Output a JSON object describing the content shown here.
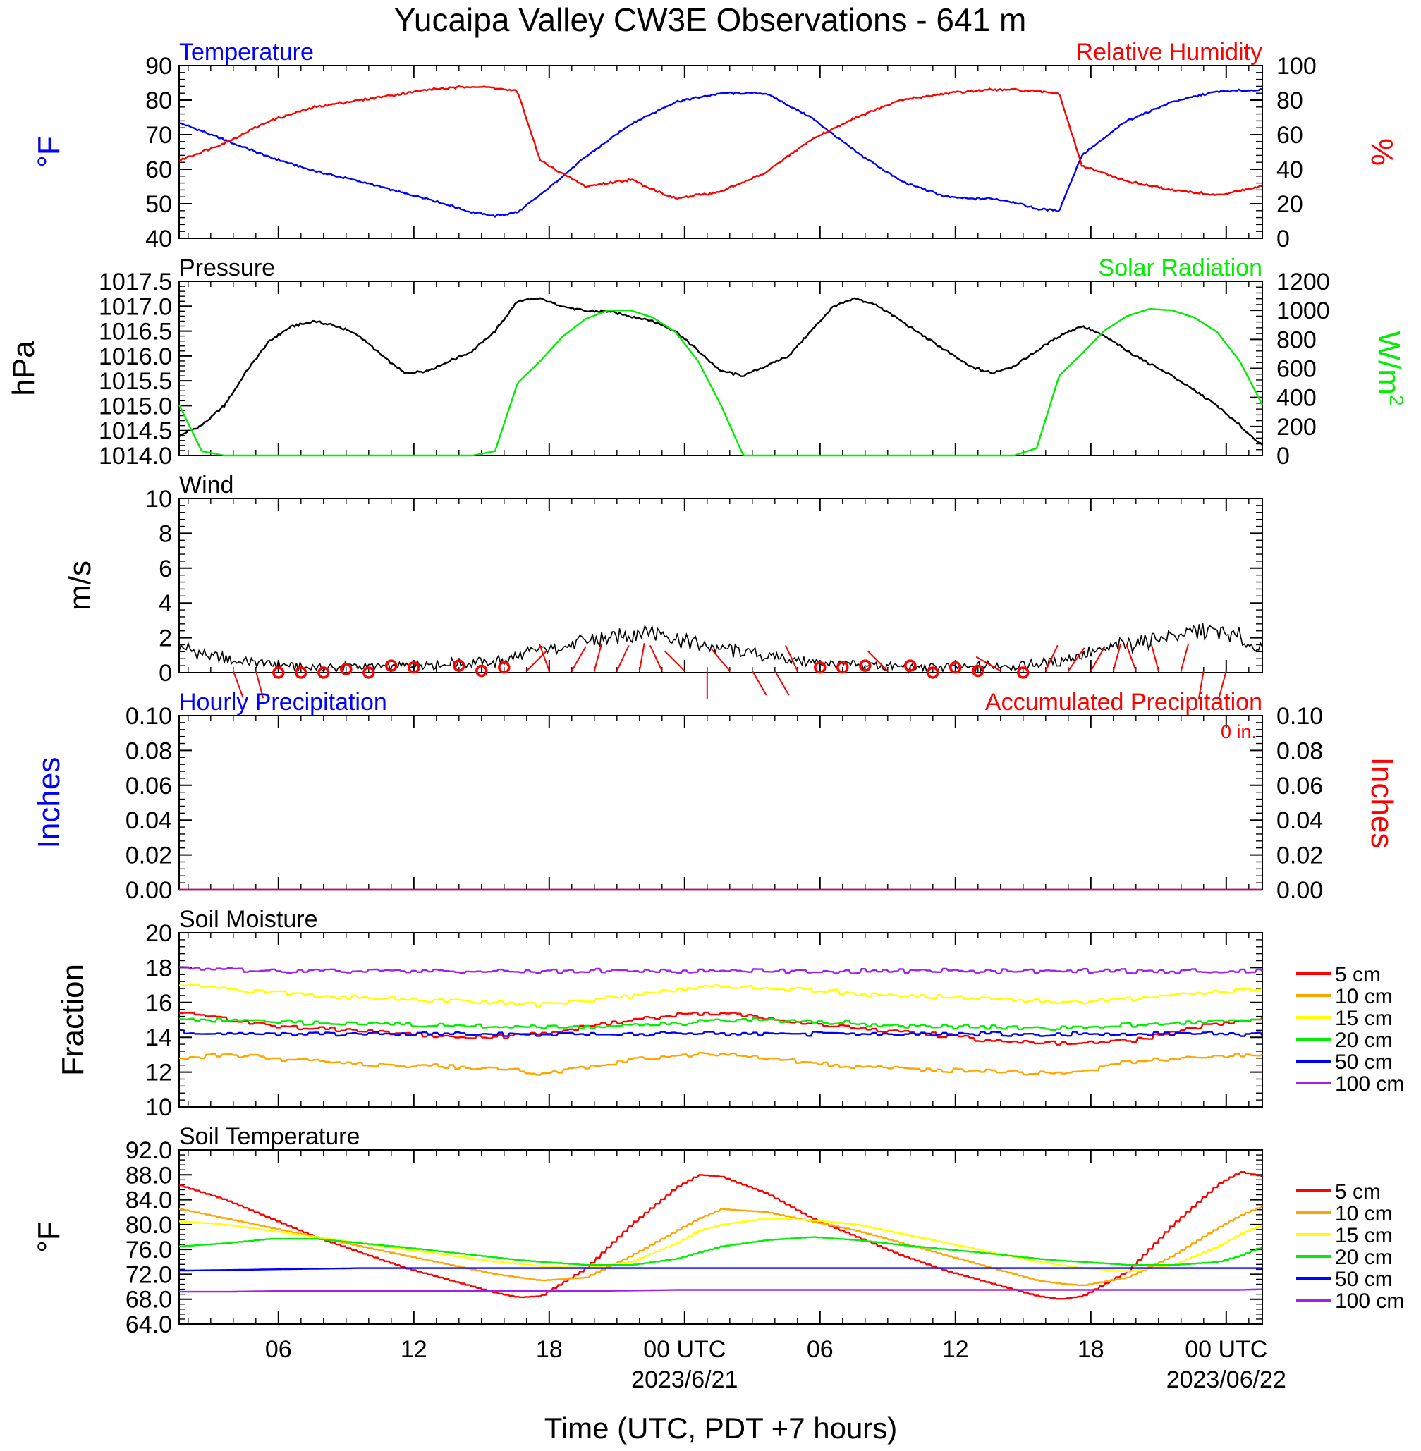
{
  "title": "Yucaipa Valley CW3E Observations - 641 m",
  "xlabel": "Time (UTC, PDT +7 hours)",
  "x_ticks": [
    "06",
    "12",
    "18",
    "00 UTC",
    "06",
    "12",
    "18",
    "00 UTC"
  ],
  "x_dates": [
    "2023/6/21",
    "2023/06/22"
  ],
  "colors": {
    "temperature": "#0000ff",
    "humidity": "#ff0000",
    "pressure": "#000000",
    "solar": "#00ee00",
    "wind": "#000000",
    "wind_barb": "#ff0000",
    "precip_hourly": "#0000ff",
    "precip_accum": "#ff0000",
    "depth_5": "#ff0000",
    "depth_10": "#ffa500",
    "depth_15": "#ffff00",
    "depth_20": "#00ee00",
    "depth_50": "#0000ff",
    "depth_100": "#a020f0"
  },
  "chart_data": [
    {
      "type": "line",
      "panel": "temp-rh",
      "label_left": "Temperature",
      "label_right": "Relative Humidity",
      "ylabel_left": "°F",
      "ylabel_right": "%",
      "ylim_left": [
        40,
        90
      ],
      "ylim_right": [
        0,
        100
      ],
      "yticks_left": [
        "40",
        "50",
        "60",
        "70",
        "80",
        "90"
      ],
      "yticks_right": [
        "0",
        "20",
        "40",
        "60",
        "80",
        "100"
      ],
      "x_hours": [
        0,
        2,
        4,
        6,
        8,
        10,
        11,
        12,
        13,
        14,
        15,
        16,
        18,
        20,
        22,
        24,
        26,
        28,
        30,
        32,
        34,
        35,
        36,
        37,
        38,
        39,
        40,
        42,
        44,
        46,
        48
      ],
      "series": [
        {
          "axis": "left",
          "color": "temperature",
          "values": [
            73.5,
            68.5,
            63.5,
            59.5,
            56.5,
            53,
            51.5,
            49.5,
            47.5,
            46.5,
            47.5,
            52.5,
            63.5,
            73,
            79.5,
            82,
            82,
            75,
            65,
            56.5,
            52,
            51.5,
            51.5,
            50.5,
            48.5,
            48,
            64,
            74,
            79.5,
            82.5,
            83
          ]
        },
        {
          "axis": "right",
          "color": "humidity",
          "values": [
            45,
            55,
            68,
            76,
            80,
            84,
            86,
            87,
            88,
            87,
            85,
            45,
            30,
            34,
            23,
            27,
            38,
            57,
            70,
            80,
            84,
            85,
            86,
            86,
            85,
            84,
            42,
            33,
            28,
            25,
            30
          ]
        }
      ]
    },
    {
      "type": "line",
      "panel": "pressure-solar",
      "label_left": "Pressure",
      "label_right": "Solar Radiation",
      "ylabel_left": "hPa",
      "ylabel_right_base": "W/m",
      "ylabel_right_sup": "2",
      "ylim_left": [
        1014.0,
        1017.5
      ],
      "ylim_right": [
        0,
        1200
      ],
      "yticks_left": [
        "1014.0",
        "1014.5",
        "1015.0",
        "1015.5",
        "1016.0",
        "1016.5",
        "1017.0",
        "1017.5"
      ],
      "yticks_right": [
        "0",
        "200",
        "400",
        "600",
        "800",
        "1000",
        "1200"
      ],
      "x_hours": [
        0,
        1,
        2,
        3,
        4,
        5,
        6,
        7,
        8,
        9,
        10,
        11,
        12,
        13,
        14,
        15,
        16,
        17,
        18,
        19,
        20,
        21,
        22,
        23,
        24,
        25,
        26,
        27,
        28,
        29,
        30,
        31,
        32,
        33,
        34,
        35,
        36,
        37,
        38,
        39,
        40,
        41,
        42,
        43,
        44,
        45,
        46,
        47,
        48
      ],
      "series": [
        {
          "axis": "left",
          "color": "pressure",
          "values": [
            1014.4,
            1014.6,
            1015.0,
            1015.7,
            1016.3,
            1016.6,
            1016.7,
            1016.6,
            1016.4,
            1016.0,
            1015.65,
            1015.7,
            1015.9,
            1016.1,
            1016.5,
            1017.1,
            1017.15,
            1017.0,
            1016.9,
            1016.9,
            1016.8,
            1016.7,
            1016.5,
            1016.1,
            1015.7,
            1015.6,
            1015.8,
            1016.0,
            1016.5,
            1017.0,
            1017.15,
            1017.0,
            1016.7,
            1016.4,
            1016.1,
            1015.8,
            1015.65,
            1015.8,
            1016.1,
            1016.4,
            1016.6,
            1016.4,
            1016.1,
            1015.85,
            1015.6,
            1015.3,
            1015.0,
            1014.6,
            1014.2
          ]
        },
        {
          "axis": "right",
          "color": "solar",
          "values": [
            350,
            30,
            0,
            0,
            0,
            0,
            0,
            0,
            0,
            0,
            0,
            0,
            0,
            0,
            30,
            500,
            650,
            820,
            940,
            1000,
            1000,
            950,
            850,
            650,
            350,
            0,
            0,
            0,
            0,
            0,
            0,
            0,
            0,
            0,
            0,
            0,
            0,
            0,
            50,
            550,
            700,
            860,
            960,
            1010,
            1000,
            950,
            850,
            650,
            350
          ]
        }
      ]
    },
    {
      "type": "line",
      "panel": "wind",
      "label_left": "Wind",
      "ylabel_left": "m/s",
      "ylim_left": [
        0,
        10
      ],
      "yticks_left": [
        "0",
        "2",
        "4",
        "6",
        "8",
        "10"
      ],
      "x_hours": [
        0,
        1,
        2,
        3,
        4,
        5,
        6,
        7,
        8,
        9,
        10,
        11,
        12,
        13,
        14,
        15,
        16,
        17,
        18,
        19,
        20,
        21,
        22,
        23,
        24,
        25,
        26,
        27,
        28,
        29,
        30,
        31,
        32,
        33,
        34,
        35,
        36,
        37,
        38,
        39,
        40,
        41,
        42,
        43,
        44,
        45,
        46,
        47,
        48
      ],
      "series": [
        {
          "axis": "left",
          "color": "wind",
          "values": [
            1.6,
            1.0,
            0.8,
            0.6,
            0.5,
            0.4,
            0.3,
            0.3,
            0.4,
            0.3,
            0.4,
            0.5,
            0.5,
            0.6,
            0.6,
            0.9,
            1.3,
            1.5,
            1.8,
            2.0,
            2.2,
            2.4,
            2.0,
            1.6,
            1.4,
            1.2,
            1.0,
            0.8,
            0.6,
            0.5,
            0.4,
            0.4,
            0.3,
            0.3,
            0.3,
            0.3,
            0.4,
            0.4,
            0.5,
            0.6,
            1.0,
            1.3,
            1.6,
            1.9,
            2.1,
            2.3,
            2.4,
            2.0,
            1.3
          ]
        }
      ],
      "barbs": {
        "calm_hours": [
          4,
          5,
          6,
          7,
          8,
          9,
          10,
          12,
          13,
          14,
          28,
          29,
          30,
          32,
          33,
          34,
          35,
          37
        ],
        "calm_speeds": [
          0.0,
          0.0,
          0.0,
          0.2,
          0.0,
          0.4,
          0.3,
          0.4,
          0.1,
          0.3,
          0.3,
          0.3,
          0.4,
          0.4,
          0.0,
          0.3,
          0.1,
          0.0
        ],
        "stick_hours": [
          2,
          3,
          15,
          16,
          17,
          18,
          19,
          20,
          21,
          22,
          23,
          24,
          25,
          26,
          27,
          31,
          36,
          38,
          39,
          40,
          41,
          42,
          43,
          44,
          45,
          46
        ],
        "stick_dir_deg": [
          160,
          165,
          45,
          340,
          30,
          15,
          25,
          10,
          335,
          315,
          180,
          320,
          150,
          150,
          335,
          315,
          300,
          25,
          35,
          30,
          15,
          340,
          345,
          15,
          190,
          195
        ]
      }
    },
    {
      "type": "line",
      "panel": "precip",
      "label_left": "Hourly Precipitation",
      "label_right": "Accumulated Precipitation",
      "annotation": "0 in.",
      "ylabel_left": "Inches",
      "ylabel_right": "Inches",
      "ylim_left": [
        0,
        0.1
      ],
      "ylim_right": [
        0,
        0.1
      ],
      "yticks_left": [
        "0.00",
        "0.02",
        "0.04",
        "0.06",
        "0.08",
        "0.10"
      ],
      "yticks_right": [
        "0.00",
        "0.02",
        "0.04",
        "0.06",
        "0.08",
        "0.10"
      ],
      "x_hours": [
        0,
        48
      ],
      "series": [
        {
          "axis": "left",
          "color": "precip_hourly",
          "values": [
            0,
            0
          ]
        },
        {
          "axis": "right",
          "color": "precip_accum",
          "values": [
            0,
            0
          ]
        }
      ]
    },
    {
      "type": "line",
      "panel": "soil-moisture",
      "label_left": "Soil Moisture",
      "ylabel_left": "Fraction",
      "ylim_left": [
        10,
        20
      ],
      "yticks_left": [
        "10",
        "12",
        "14",
        "16",
        "18",
        "20"
      ],
      "legend": [
        "5 cm",
        "10 cm",
        "15 cm",
        "20 cm",
        "50 cm",
        "100 cm"
      ],
      "legend_colors": [
        "depth_5",
        "depth_10",
        "depth_15",
        "depth_20",
        "depth_50",
        "depth_100"
      ],
      "x_hours": [
        0,
        2,
        4,
        6,
        8,
        10,
        12,
        14,
        16,
        18,
        20,
        22,
        24,
        26,
        28,
        30,
        32,
        34,
        36,
        38,
        40,
        42,
        44,
        46,
        48
      ],
      "series": [
        {
          "name": "5 cm",
          "color": "depth_5",
          "values": [
            15.5,
            15.0,
            14.7,
            14.5,
            14.4,
            14.2,
            14.1,
            14.0,
            14.2,
            14.6,
            15.0,
            15.3,
            15.4,
            15.1,
            14.8,
            14.5,
            14.3,
            14.1,
            13.8,
            13.7,
            13.6,
            13.8,
            14.3,
            14.8,
            15.1
          ]
        },
        {
          "name": "10 cm",
          "color": "depth_10",
          "values": [
            12.8,
            13.0,
            12.8,
            12.6,
            12.5,
            12.4,
            12.3,
            12.2,
            11.9,
            12.3,
            12.7,
            13.0,
            13.0,
            12.8,
            12.5,
            12.3,
            12.2,
            12.1,
            12.1,
            11.9,
            12.0,
            12.6,
            12.8,
            12.9,
            13.0
          ]
        },
        {
          "name": "15 cm",
          "color": "depth_15",
          "values": [
            17.0,
            16.8,
            16.6,
            16.4,
            16.3,
            16.2,
            16.1,
            16.0,
            15.9,
            16.1,
            16.4,
            16.7,
            16.9,
            16.8,
            16.7,
            16.5,
            16.4,
            16.3,
            16.2,
            16.1,
            16.0,
            16.2,
            16.4,
            16.6,
            16.8
          ]
        },
        {
          "name": "20 cm",
          "color": "depth_20",
          "values": [
            15.0,
            15.0,
            14.9,
            14.8,
            14.8,
            14.7,
            14.7,
            14.6,
            14.6,
            14.6,
            14.7,
            14.8,
            15.0,
            15.0,
            14.9,
            14.8,
            14.7,
            14.6,
            14.6,
            14.5,
            14.6,
            14.7,
            14.8,
            14.9,
            15.0
          ]
        },
        {
          "name": "50 cm",
          "color": "depth_50",
          "values": [
            14.3,
            14.2,
            14.2,
            14.2,
            14.2,
            14.2,
            14.2,
            14.2,
            14.2,
            14.2,
            14.2,
            14.2,
            14.2,
            14.2,
            14.2,
            14.2,
            14.2,
            14.2,
            14.2,
            14.2,
            14.2,
            14.2,
            14.2,
            14.2,
            14.2
          ]
        },
        {
          "name": "100 cm",
          "color": "depth_100",
          "values": [
            18.0,
            17.9,
            17.8,
            17.8,
            17.8,
            17.8,
            17.8,
            17.8,
            17.8,
            17.8,
            17.8,
            17.8,
            17.8,
            17.8,
            17.8,
            17.8,
            17.8,
            17.8,
            17.8,
            17.8,
            17.8,
            17.8,
            17.8,
            17.8,
            17.8
          ]
        }
      ]
    },
    {
      "type": "line",
      "panel": "soil-temperature",
      "label_left": "Soil Temperature",
      "ylabel_left": "°F",
      "ylim_left": [
        64,
        92
      ],
      "yticks_left": [
        "64.0",
        "68.0",
        "72.0",
        "76.0",
        "80.0",
        "84.0",
        "88.0",
        "92.0"
      ],
      "legend": [
        "5 cm",
        "10 cm",
        "15 cm",
        "20 cm",
        "50 cm",
        "100 cm"
      ],
      "legend_colors": [
        "depth_5",
        "depth_10",
        "depth_15",
        "depth_20",
        "depth_50",
        "depth_100"
      ],
      "x_hours": [
        0,
        2,
        4,
        6,
        8,
        10,
        12,
        14,
        15,
        16,
        18,
        20,
        22,
        23,
        24,
        26,
        28,
        30,
        32,
        34,
        36,
        38,
        39,
        40,
        42,
        44,
        46,
        47,
        48
      ],
      "series": [
        {
          "name": "5 cm",
          "color": "depth_5",
          "values": [
            86.3,
            84,
            81,
            78,
            75.5,
            73,
            71,
            69,
            68.3,
            68.5,
            73,
            80,
            86,
            88,
            87.7,
            85,
            81,
            78,
            75,
            72.5,
            70.5,
            68.5,
            68,
            68.5,
            72.5,
            80,
            86.5,
            88.5,
            87.7
          ]
        },
        {
          "name": "10 cm",
          "color": "depth_10",
          "values": [
            82.5,
            81,
            79.5,
            78,
            76.5,
            75,
            73.5,
            72,
            71.5,
            71,
            71.5,
            75,
            79,
            81,
            82.5,
            82,
            80.5,
            79,
            77,
            75,
            73,
            71,
            70.5,
            70.2,
            71.5,
            75,
            79.5,
            81.5,
            83
          ]
        },
        {
          "name": "15 cm",
          "color": "depth_15",
          "values": [
            80.5,
            80,
            79,
            78,
            77,
            76,
            75,
            74,
            73.7,
            73.3,
            73,
            74,
            77,
            79,
            80,
            81,
            80.7,
            80,
            78.5,
            77,
            75.5,
            74,
            73.5,
            73,
            72.5,
            73.5,
            76.5,
            78.5,
            80
          ]
        },
        {
          "name": "20 cm",
          "color": "depth_20",
          "values": [
            76.5,
            77,
            77.7,
            77.7,
            77,
            76.3,
            75.5,
            74.7,
            74.3,
            74,
            73.5,
            73.5,
            74.5,
            75.5,
            76.5,
            77.5,
            78,
            77.5,
            76.7,
            76,
            75.3,
            74.5,
            74.2,
            74,
            73.5,
            73.5,
            74,
            75,
            76.5
          ]
        },
        {
          "name": "50 cm",
          "color": "depth_50",
          "values": [
            72.6,
            72.7,
            72.8,
            72.9,
            73,
            73,
            73,
            73,
            73,
            73,
            73,
            73,
            73,
            73,
            73,
            73,
            73,
            73,
            73,
            73,
            73,
            73,
            73,
            73,
            73,
            73,
            73,
            73,
            73
          ]
        },
        {
          "name": "100 cm",
          "color": "depth_100",
          "values": [
            69.2,
            69.2,
            69.3,
            69.3,
            69.3,
            69.3,
            69.3,
            69.3,
            69.3,
            69.3,
            69.3,
            69.4,
            69.5,
            69.5,
            69.5,
            69.5,
            69.5,
            69.5,
            69.5,
            69.5,
            69.5,
            69.5,
            69.5,
            69.5,
            69.5,
            69.5,
            69.5,
            69.5,
            69.6
          ]
        }
      ]
    }
  ]
}
